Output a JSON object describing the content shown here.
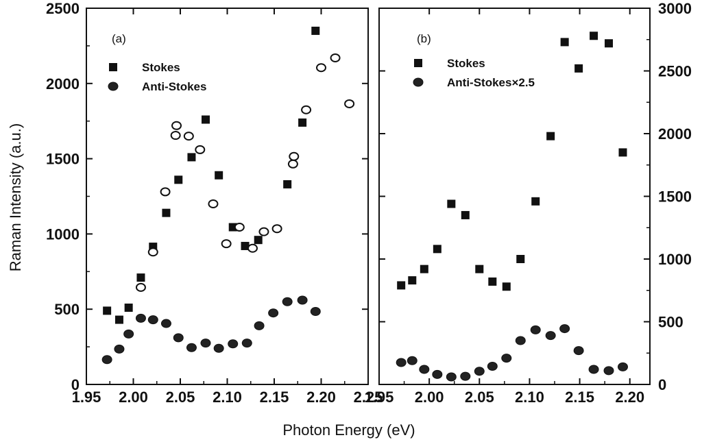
{
  "figure": {
    "ylabel": "Raman Intensity (a.u.)",
    "xlabel": "Photon Energy (eV)"
  },
  "chart_data": [
    {
      "type": "scatter",
      "panel": "(a)",
      "xlim": [
        1.95,
        2.25
      ],
      "ylim": [
        0,
        2500
      ],
      "xticks": [
        "1.95",
        "2.00",
        "2.05",
        "2.10",
        "2.15",
        "2.20",
        "2.25"
      ],
      "yticks": [
        "0",
        "500",
        "1000",
        "1500",
        "2000",
        "2500"
      ],
      "y_axis_side": "left",
      "legend": [
        {
          "label": "Stokes",
          "marker": "filled-square"
        },
        {
          "label": "Anti-Stokes",
          "marker": "filled-circle"
        }
      ],
      "series": [
        {
          "name": "Stokes",
          "marker": "filled-square",
          "x": [
            1.972,
            1.985,
            1.995,
            2.008,
            2.021,
            2.035,
            2.048,
            2.062,
            2.077,
            2.091,
            2.106,
            2.119,
            2.133,
            2.164,
            2.18,
            2.194
          ],
          "y": [
            490,
            430,
            510,
            710,
            915,
            1140,
            1360,
            1510,
            1760,
            1390,
            1045,
            920,
            960,
            1330,
            1740,
            2350
          ]
        },
        {
          "name": "Anti-Stokes",
          "marker": "filled-circle",
          "x": [
            1.972,
            1.985,
            1.995,
            2.008,
            2.021,
            2.035,
            2.048,
            2.062,
            2.077,
            2.091,
            2.106,
            2.121,
            2.134,
            2.149,
            2.164,
            2.18,
            2.194
          ],
          "y": [
            165,
            235,
            335,
            440,
            430,
            405,
            310,
            245,
            275,
            240,
            270,
            275,
            390,
            475,
            550,
            560,
            485
          ]
        },
        {
          "marker": "open-circle",
          "x": [
            2.008,
            2.021,
            2.034,
            2.045,
            2.046,
            2.059,
            2.071,
            2.085,
            2.099,
            2.113,
            2.127,
            2.139,
            2.153,
            2.17,
            2.171,
            2.184,
            2.2,
            2.215,
            2.23
          ],
          "y": [
            645,
            880,
            1280,
            1655,
            1720,
            1650,
            1560,
            1200,
            935,
            1045,
            905,
            1015,
            1035,
            1465,
            1515,
            1825,
            2105,
            2170,
            1865
          ]
        }
      ]
    },
    {
      "type": "scatter",
      "panel": "(b)",
      "xlim": [
        1.95,
        2.22
      ],
      "ylim": [
        0,
        3000
      ],
      "xticks": [
        "1.95",
        "2.00",
        "2.05",
        "2.10",
        "2.15",
        "2.20"
      ],
      "yticks": [
        "0",
        "500",
        "1000",
        "1500",
        "2000",
        "2500",
        "3000"
      ],
      "y_axis_side": "right",
      "legend": [
        {
          "label": "Stokes",
          "marker": "filled-square"
        },
        {
          "label": "Anti-Stokes×2.5",
          "marker": "filled-circle"
        }
      ],
      "series": [
        {
          "name": "Stokes",
          "marker": "filled-square",
          "x": [
            1.972,
            1.983,
            1.995,
            2.008,
            2.022,
            2.036,
            2.05,
            2.063,
            2.077,
            2.091,
            2.106,
            2.121,
            2.135,
            2.149,
            2.164,
            2.179,
            2.193
          ],
          "y": [
            790,
            830,
            920,
            1080,
            1440,
            1350,
            920,
            820,
            780,
            1000,
            1460,
            1980,
            2730,
            2520,
            2780,
            2720,
            1850
          ]
        },
        {
          "name": "Anti-Stokes×2.5",
          "marker": "filled-circle",
          "x": [
            1.972,
            1.983,
            1.995,
            2.008,
            2.022,
            2.036,
            2.05,
            2.063,
            2.077,
            2.091,
            2.106,
            2.121,
            2.135,
            2.149,
            2.164,
            2.179,
            2.193
          ],
          "y": [
            175,
            190,
            120,
            80,
            60,
            65,
            105,
            145,
            210,
            350,
            435,
            390,
            445,
            270,
            120,
            110,
            140
          ]
        }
      ]
    }
  ]
}
